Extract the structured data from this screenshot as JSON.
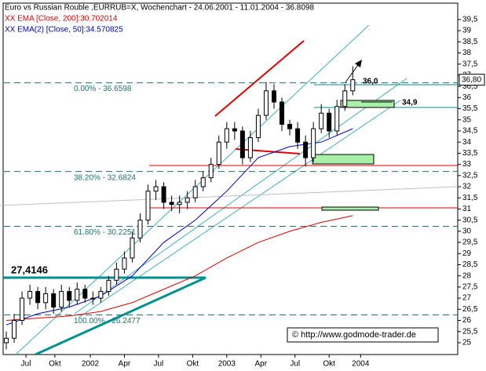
{
  "chart_data": {
    "type": "candlestick",
    "title": "Euro vs Russian Rouble ,EURRUB=X, Wochenchart - 24.06.2001 - 11.01.2004 - 36.8098",
    "last_price_label": "36,80",
    "x": [
      0,
      3,
      6,
      9,
      12,
      15,
      18,
      21,
      24,
      27,
      30,
      33,
      36,
      39,
      42,
      45,
      48,
      51,
      54,
      57,
      60,
      63,
      66,
      69,
      72,
      75,
      78,
      81,
      84,
      87,
      90,
      93,
      96,
      99,
      102,
      105,
      108,
      111,
      114,
      117,
      120,
      123,
      126,
      129,
      132
    ],
    "ohlc": [
      [
        25.0,
        25.5,
        24.7,
        25.2
      ],
      [
        25.2,
        26.3,
        25.0,
        26.0
      ],
      [
        26.0,
        27.3,
        25.8,
        27.0
      ],
      [
        27.0,
        27.6,
        26.7,
        27.3
      ],
      [
        27.3,
        27.5,
        26.5,
        26.8
      ],
      [
        26.8,
        27.5,
        26.5,
        27.2
      ],
      [
        27.2,
        27.4,
        26.3,
        26.6
      ],
      [
        26.6,
        27.6,
        26.4,
        27.3
      ],
      [
        27.3,
        27.5,
        26.6,
        26.9
      ],
      [
        26.9,
        27.7,
        26.7,
        27.4
      ],
      [
        27.4,
        27.6,
        26.8,
        27.0
      ],
      [
        27.0,
        27.3,
        26.7,
        27.0
      ],
      [
        27.0,
        27.5,
        26.8,
        27.3
      ],
      [
        27.3,
        28.0,
        27.1,
        27.8
      ],
      [
        27.8,
        28.6,
        27.6,
        28.3
      ],
      [
        28.3,
        29.1,
        28.1,
        28.8
      ],
      [
        28.8,
        30.0,
        28.6,
        29.7
      ],
      [
        29.7,
        30.8,
        29.5,
        30.5
      ],
      [
        30.5,
        32.1,
        30.3,
        31.8
      ],
      [
        31.8,
        32.3,
        31.4,
        32.0
      ],
      [
        32.0,
        32.2,
        31.0,
        31.3
      ],
      [
        31.3,
        31.6,
        30.9,
        31.2
      ],
      [
        31.2,
        31.6,
        30.8,
        31.3
      ],
      [
        31.3,
        31.8,
        31.0,
        31.5
      ],
      [
        31.5,
        32.3,
        31.3,
        32.0
      ],
      [
        32.0,
        32.7,
        31.8,
        32.4
      ],
      [
        32.4,
        33.3,
        32.2,
        33.0
      ],
      [
        33.0,
        34.3,
        32.8,
        34.0
      ],
      [
        34.0,
        34.9,
        33.7,
        34.6
      ],
      [
        34.6,
        34.9,
        34.1,
        34.5
      ],
      [
        34.5,
        34.7,
        33.0,
        33.3
      ],
      [
        33.3,
        34.5,
        33.1,
        34.2
      ],
      [
        34.2,
        35.5,
        34.0,
        35.2
      ],
      [
        35.2,
        36.7,
        35.0,
        36.3
      ],
      [
        36.3,
        36.6,
        35.5,
        35.8
      ],
      [
        35.8,
        36.0,
        34.5,
        34.8
      ],
      [
        34.8,
        35.0,
        34.3,
        34.6
      ],
      [
        34.6,
        34.9,
        33.7,
        34.0
      ],
      [
        34.0,
        34.3,
        32.9,
        33.3
      ],
      [
        33.3,
        34.9,
        33.1,
        34.6
      ],
      [
        34.6,
        35.7,
        34.4,
        35.3
      ],
      [
        35.3,
        35.5,
        34.2,
        34.5
      ],
      [
        34.5,
        35.9,
        34.3,
        35.6
      ],
      [
        35.6,
        36.6,
        35.4,
        36.3
      ],
      [
        36.3,
        37.4,
        36.1,
        36.8
      ]
    ],
    "series": [
      {
        "name": "XX EMA [Close, 200]:30.702014",
        "color": "#e00000",
        "x": [
          0,
          12,
          24,
          36,
          48,
          60,
          72,
          84,
          96,
          108,
          120,
          132
        ],
        "values": [
          26.0,
          26.1,
          26.2,
          26.4,
          26.8,
          27.4,
          28.0,
          28.8,
          29.5,
          30.0,
          30.4,
          30.7
        ]
      },
      {
        "name": "XX EMA(2) [Close, 50]:34.570825",
        "color": "#0000c0",
        "x": [
          0,
          12,
          24,
          36,
          48,
          60,
          72,
          84,
          96,
          108,
          120,
          132
        ],
        "values": [
          25.8,
          26.3,
          26.6,
          27.1,
          28.0,
          29.5,
          30.5,
          31.8,
          33.3,
          33.8,
          34.0,
          34.6
        ]
      }
    ],
    "fib_levels": [
      {
        "value": 36.6598,
        "label": "0.00% - 36.6598"
      },
      {
        "value": 32.6824,
        "label": "38.20% - 32.6824"
      },
      {
        "value": 30.2251,
        "label": "61.80% - 30.2251"
      },
      {
        "value": 26.2477,
        "label": "100.00% - 26.2477"
      }
    ],
    "annotations": [
      "27,4146",
      "36,0",
      "34,9",
      "© http://www.godmode-trader.de"
    ],
    "xlim": [
      -0.9,
      172
    ],
    "xticks": [
      {
        "value": 7.5,
        "label": "Jul"
      },
      {
        "value": 18.5,
        "label": "Okt"
      },
      {
        "value": 32,
        "label": "2002"
      },
      {
        "value": 45,
        "label": "Apr"
      },
      {
        "value": 58,
        "label": "Jul"
      },
      {
        "value": 71,
        "label": "Okt"
      },
      {
        "value": 84,
        "label": "2003"
      },
      {
        "value": 97,
        "label": "Apr"
      },
      {
        "value": 110,
        "label": "Jul"
      },
      {
        "value": 123,
        "label": "Okt"
      },
      {
        "value": 135,
        "label": "2004"
      }
    ],
    "ylim": [
      24.47,
      40.2
    ],
    "yticks": [
      25,
      {
        "value": 25.5,
        "label": "25,5"
      },
      26,
      {
        "value": 26.5,
        "label": "26,5"
      },
      27,
      {
        "value": 27.5,
        "label": "27,5"
      },
      28,
      {
        "value": 28.5,
        "label": "28,5"
      },
      29,
      {
        "value": 29.5,
        "label": "29,5"
      },
      30,
      {
        "value": 30.5,
        "label": "30,5"
      },
      31,
      {
        "value": 31.5,
        "label": "31,5"
      },
      32,
      {
        "value": 32.5,
        "label": "32,5"
      },
      33,
      {
        "value": 33.5,
        "label": "33,5"
      },
      34,
      {
        "value": 34.5,
        "label": "34,5"
      },
      35,
      {
        "value": 35.5,
        "label": "35,5"
      },
      36,
      {
        "value": 36.5,
        "label": "36,5"
      },
      37,
      {
        "value": 37.5,
        "label": "37,5"
      },
      38,
      {
        "value": 38.5,
        "label": "38,5"
      },
      39,
      {
        "value": 39.5,
        "label": "39,5"
      }
    ]
  }
}
